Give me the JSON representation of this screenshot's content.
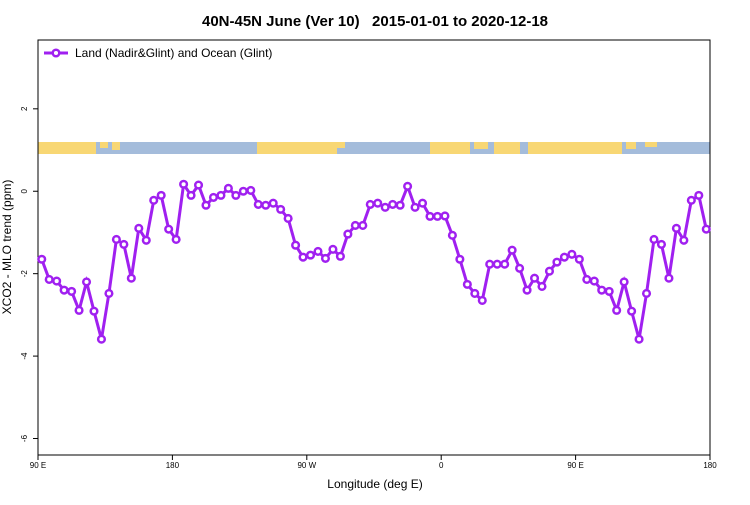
{
  "chart_data": {
    "type": "line",
    "title": "40N-45N June (Ver 10)   2015-01-01 to 2020-12-18",
    "x_label": "Longitude (deg E)",
    "y_label": "XCO2 - MLO trend (ppm)",
    "x": [
      92.5,
      97.5,
      102.5,
      107.5,
      112.5,
      117.5,
      122.5,
      127.5,
      132.5,
      137.5,
      142.5,
      147.5,
      152.5,
      157.5,
      162.5,
      167.5,
      172.5,
      177.5,
      182.5,
      187.5,
      192.5,
      197.5,
      202.5,
      207.5,
      212.5,
      217.5,
      222.5,
      227.5,
      232.5,
      237.5,
      242.5,
      247.5,
      252.5,
      257.5,
      262.5,
      267.5,
      272.5,
      277.5,
      282.5,
      287.5,
      292.5,
      297.5,
      302.5,
      307.5,
      312.5,
      317.5,
      322.5,
      327.5,
      332.5,
      337.5,
      342.5,
      347.5,
      352.5,
      357.5,
      362.5,
      367.5,
      372.5,
      377.5,
      382.5,
      387.5,
      392.5,
      397.5,
      402.5,
      407.5,
      412.5,
      417.5,
      422.5,
      427.5,
      432.5,
      437.5,
      442.5,
      447.5,
      452.5,
      457.5,
      462.5,
      467.5,
      472.5,
      477.5,
      482.5,
      487.5,
      492.5,
      497.5,
      502.5,
      507.5,
      512.5,
      517.5,
      522.5,
      527.5,
      532.5,
      537.5
    ],
    "series": [
      {
        "name": "Land (Nadir&Glint) and Ocean (Glint)",
        "color": "#a020f0",
        "values": [
          -1.65,
          -2.14,
          -2.18,
          -2.4,
          -2.43,
          -2.89,
          -2.2,
          -2.91,
          -3.59,
          -2.48,
          -1.17,
          -1.29,
          -2.11,
          -0.9,
          -1.19,
          -0.22,
          -0.1,
          -0.92,
          -1.17,
          0.17,
          -0.1,
          0.15,
          -0.34,
          -0.15,
          -0.1,
          0.07,
          -0.1,
          0.0,
          0.02,
          -0.32,
          -0.34,
          -0.29,
          -0.44,
          -0.66,
          -1.31,
          -1.6,
          -1.55,
          -1.46,
          -1.63,
          -1.41,
          -1.58,
          -1.04,
          -0.83,
          -0.83,
          -0.32,
          -0.29,
          -0.39,
          -0.32,
          -0.34,
          0.12,
          -0.39,
          -0.29,
          -0.61,
          -0.61,
          -0.6,
          -1.07,
          -1.65,
          -2.26,
          -2.48,
          -2.65,
          -1.77,
          -1.77,
          -1.77,
          -1.43,
          -1.87,
          -2.4,
          -2.11,
          -2.31,
          -1.94,
          -1.72,
          -1.6,
          -1.53,
          -1.65,
          -2.14,
          -2.18,
          -2.4,
          -2.43,
          -2.89,
          -2.2,
          -2.91,
          -3.59,
          -2.48,
          -1.17,
          -1.29,
          -2.11,
          -0.9,
          -1.19,
          -0.22,
          -0.1,
          -0.92
        ]
      }
    ],
    "xlim": [
      90,
      540
    ],
    "xticks": [
      {
        "value": 90,
        "label": "90 E"
      },
      180,
      {
        "value": 270,
        "label": "90 W"
      },
      {
        "value": 360,
        "label": "0"
      },
      {
        "value": 450,
        "label": "90 E"
      },
      {
        "value": 540,
        "label": "180"
      }
    ],
    "ylim": [
      -6.4,
      3.67
    ],
    "yticks": [
      -6,
      -4,
      -2,
      0,
      2
    ],
    "legend": "top-left"
  }
}
